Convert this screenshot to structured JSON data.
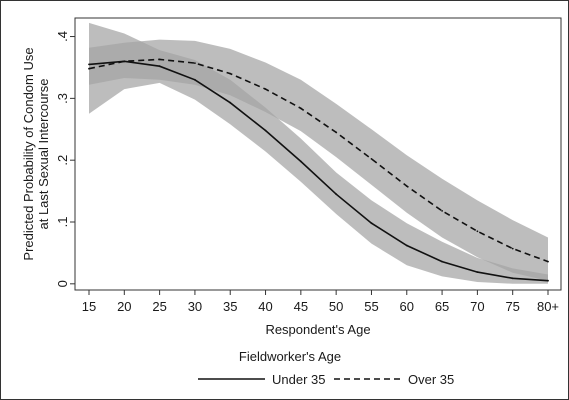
{
  "chart_data": {
    "type": "line",
    "xlabel": "Respondent's Age",
    "ylabel_lines": [
      "Predicted Probability of Condom Use",
      "at Last Sexual Intercourse"
    ],
    "x": [
      15,
      20,
      25,
      30,
      35,
      40,
      45,
      50,
      55,
      60,
      65,
      70,
      75,
      80
    ],
    "x_tick_labels": [
      "15",
      "20",
      "25",
      "30",
      "35",
      "40",
      "45",
      "50",
      "55",
      "60",
      "65",
      "70",
      "75",
      "80+"
    ],
    "xlim": [
      15,
      80
    ],
    "ylim": [
      -0.01,
      0.43
    ],
    "y_ticks": [
      0,
      0.1,
      0.2,
      0.3,
      0.4
    ],
    "y_tick_labels": [
      "0",
      ".1",
      ".2",
      ".3",
      ".4"
    ],
    "grid": false,
    "legend": {
      "title": "Fieldworker's Age",
      "placement": "bottom"
    },
    "series": [
      {
        "name": "Under 35",
        "style": "solid",
        "values": [
          0.355,
          0.36,
          0.352,
          0.33,
          0.293,
          0.248,
          0.198,
          0.145,
          0.098,
          0.062,
          0.036,
          0.019,
          0.009,
          0.005
        ],
        "ci_lower": [
          0.275,
          0.315,
          0.325,
          0.298,
          0.258,
          0.214,
          0.165,
          0.113,
          0.065,
          0.03,
          0.012,
          0.003,
          0.0,
          0.0
        ],
        "ci_upper": [
          0.422,
          0.405,
          0.378,
          0.362,
          0.33,
          0.285,
          0.235,
          0.18,
          0.135,
          0.098,
          0.068,
          0.042,
          0.025,
          0.015
        ]
      },
      {
        "name": "Over 35",
        "style": "dashed",
        "values": [
          0.348,
          0.36,
          0.363,
          0.357,
          0.34,
          0.315,
          0.284,
          0.245,
          0.202,
          0.158,
          0.118,
          0.085,
          0.057,
          0.036
        ],
        "ci_lower": [
          0.322,
          0.333,
          0.33,
          0.322,
          0.305,
          0.278,
          0.247,
          0.205,
          0.16,
          0.115,
          0.075,
          0.043,
          0.018,
          0.005
        ],
        "ci_upper": [
          0.382,
          0.39,
          0.395,
          0.393,
          0.38,
          0.358,
          0.33,
          0.291,
          0.25,
          0.208,
          0.17,
          0.135,
          0.103,
          0.075
        ]
      }
    ],
    "colors": {
      "band": "#a3a3a3",
      "line": "#111111",
      "frame": "#333333"
    }
  }
}
